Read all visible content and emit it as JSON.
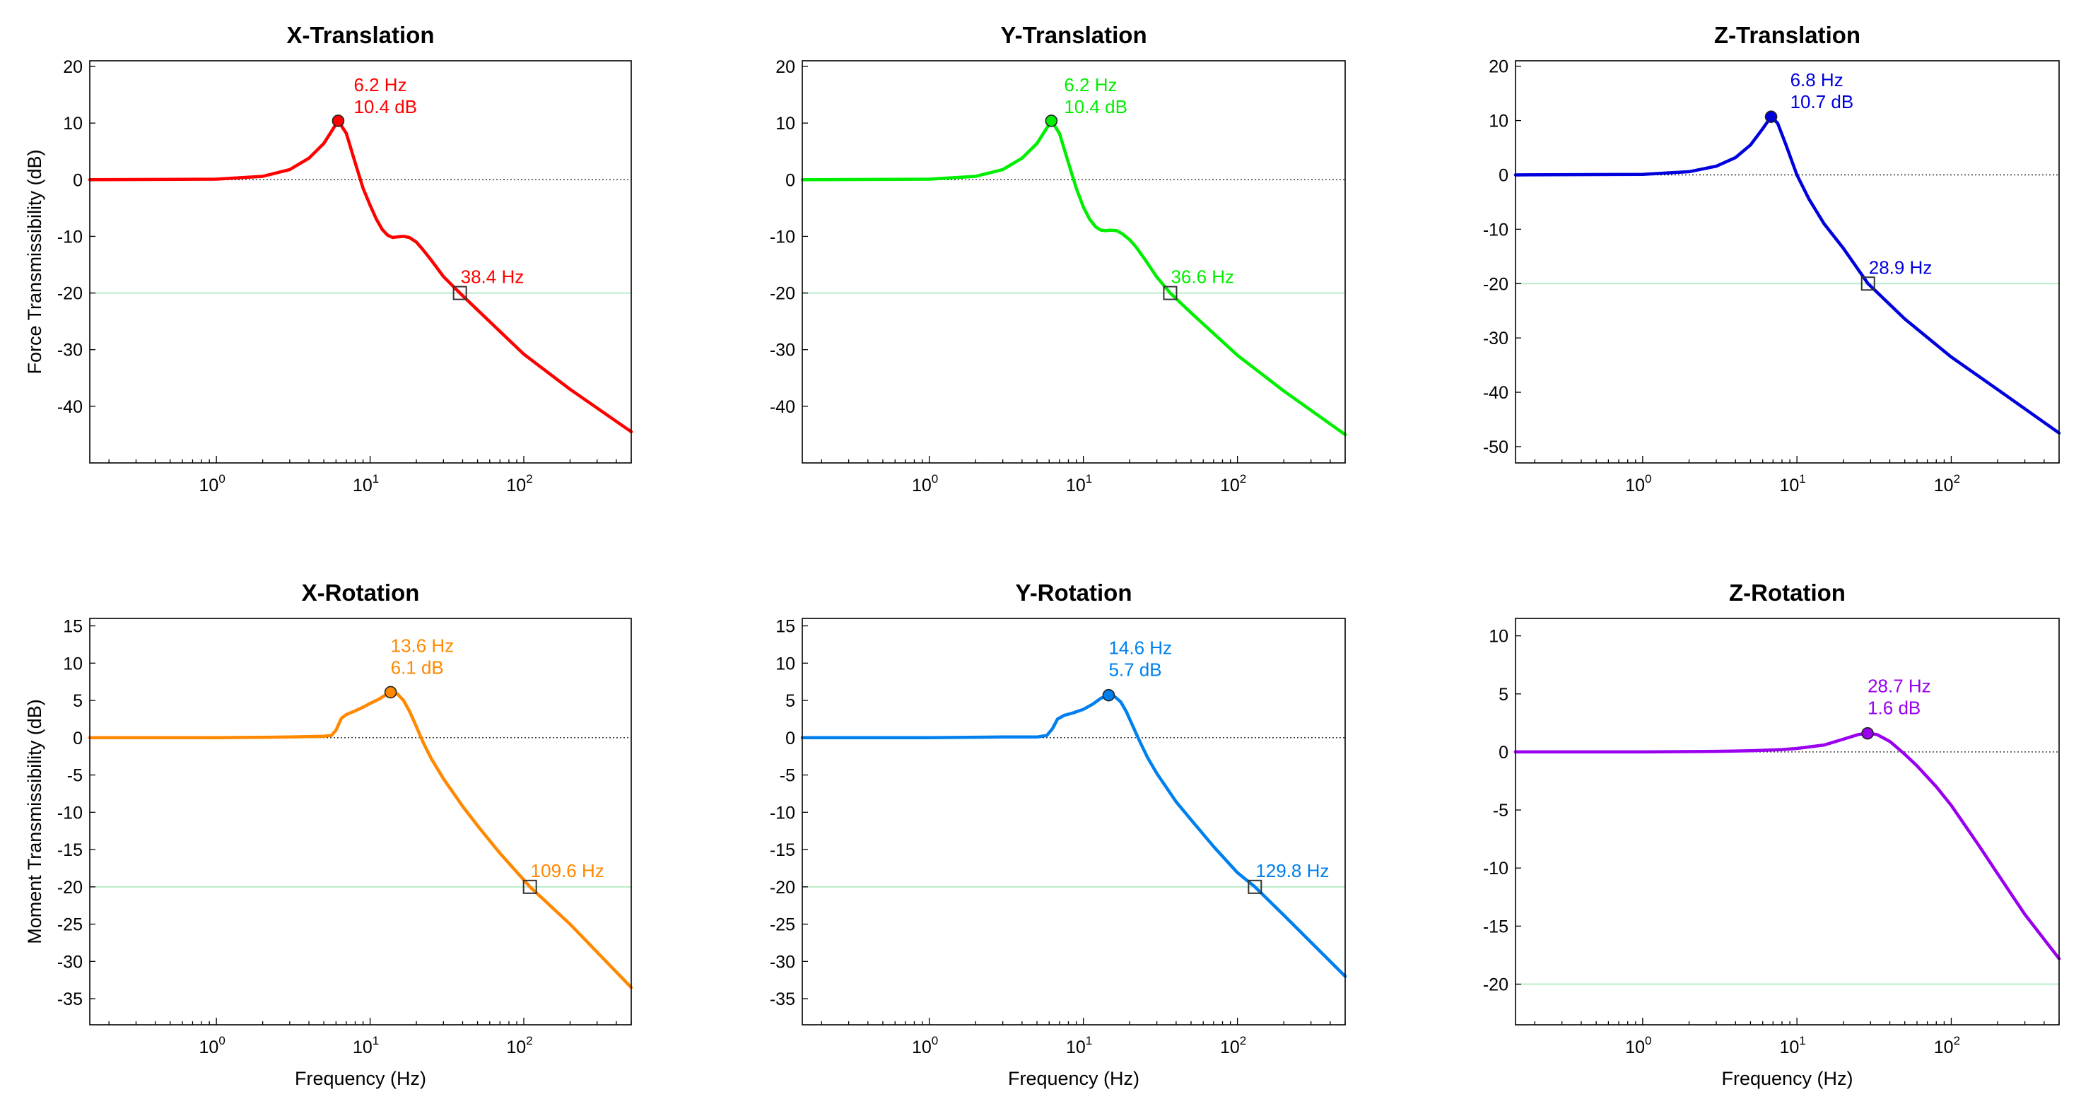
{
  "chart_data": [
    {
      "type": "line",
      "id": "xt",
      "title": "X-Translation",
      "color": "#ff0000",
      "ylabel": "Force Transmissibility  (dB)",
      "xlabel": "",
      "xscale": "log",
      "xlim": [
        0.15,
        500
      ],
      "ylim": [
        -50,
        21
      ],
      "yticks": [
        20,
        10,
        0,
        -10,
        -20,
        -30,
        -40
      ],
      "xticks": [
        {
          "base": "10",
          "exp": "0",
          "value": 1
        },
        {
          "base": "10",
          "exp": "1",
          "value": 10
        },
        {
          "base": "10",
          "exp": "2",
          "value": 100
        }
      ],
      "reference_line_db": -20,
      "points": [
        [
          0.15,
          0
        ],
        [
          1,
          0.1
        ],
        [
          2,
          0.6
        ],
        [
          3,
          1.8
        ],
        [
          4,
          3.8
        ],
        [
          5,
          6.4
        ],
        [
          6.2,
          10.4
        ],
        [
          7,
          8.2
        ],
        [
          8,
          3
        ],
        [
          9,
          -1.5
        ],
        [
          10,
          -4.5
        ],
        [
          11,
          -7
        ],
        [
          12,
          -8.8
        ],
        [
          13,
          -9.8
        ],
        [
          14,
          -10.2
        ],
        [
          15,
          -10.1
        ],
        [
          16.5,
          -10
        ],
        [
          18,
          -10.2
        ],
        [
          20,
          -11
        ],
        [
          22,
          -12.3
        ],
        [
          25,
          -14.2
        ],
        [
          30,
          -17.1
        ],
        [
          38.4,
          -20
        ],
        [
          50,
          -23
        ],
        [
          100,
          -30.8
        ],
        [
          200,
          -37
        ],
        [
          500,
          -44.5
        ]
      ],
      "peak": {
        "freq": 6.2,
        "db": 10.4,
        "freq_label": "6.2 Hz",
        "db_label": "10.4 dB"
      },
      "crossover": {
        "freq": 38.4,
        "db": -20,
        "label": "38.4 Hz"
      }
    },
    {
      "type": "line",
      "id": "yt",
      "title": "Y-Translation",
      "color": "#00ee00",
      "ylabel": "",
      "xlabel": "",
      "xscale": "log",
      "xlim": [
        0.15,
        500
      ],
      "ylim": [
        -50,
        21
      ],
      "yticks": [
        20,
        10,
        0,
        -10,
        -20,
        -30,
        -40
      ],
      "xticks": [
        {
          "base": "10",
          "exp": "0",
          "value": 1
        },
        {
          "base": "10",
          "exp": "1",
          "value": 10
        },
        {
          "base": "10",
          "exp": "2",
          "value": 100
        }
      ],
      "reference_line_db": -20,
      "points": [
        [
          0.15,
          0
        ],
        [
          1,
          0.1
        ],
        [
          2,
          0.6
        ],
        [
          3,
          1.8
        ],
        [
          4,
          3.8
        ],
        [
          5,
          6.4
        ],
        [
          6.2,
          10.4
        ],
        [
          7,
          8.2
        ],
        [
          8,
          3
        ],
        [
          9,
          -1.5
        ],
        [
          10,
          -4.8
        ],
        [
          11,
          -7
        ],
        [
          12,
          -8.3
        ],
        [
          13,
          -8.9
        ],
        [
          14,
          -9
        ],
        [
          15,
          -8.9
        ],
        [
          16.5,
          -9
        ],
        [
          18,
          -9.6
        ],
        [
          20,
          -10.6
        ],
        [
          22,
          -11.9
        ],
        [
          25,
          -14
        ],
        [
          30,
          -17.2
        ],
        [
          36.6,
          -20
        ],
        [
          50,
          -23.5
        ],
        [
          100,
          -31
        ],
        [
          200,
          -37.3
        ],
        [
          500,
          -45
        ]
      ],
      "peak": {
        "freq": 6.2,
        "db": 10.4,
        "freq_label": "6.2 Hz",
        "db_label": "10.4 dB"
      },
      "crossover": {
        "freq": 36.6,
        "db": -20,
        "label": "36.6 Hz"
      }
    },
    {
      "type": "line",
      "id": "zt",
      "title": "Z-Translation",
      "color": "#0000dd",
      "ylabel": "",
      "xlabel": "",
      "xscale": "log",
      "xlim": [
        0.15,
        500
      ],
      "ylim": [
        -53,
        21
      ],
      "yticks": [
        20,
        10,
        0,
        -10,
        -20,
        -30,
        -40,
        -50
      ],
      "xticks": [
        {
          "base": "10",
          "exp": "0",
          "value": 1
        },
        {
          "base": "10",
          "exp": "1",
          "value": 10
        },
        {
          "base": "10",
          "exp": "2",
          "value": 100
        }
      ],
      "reference_line_db": -20,
      "points": [
        [
          0.15,
          0
        ],
        [
          1,
          0.1
        ],
        [
          2,
          0.6
        ],
        [
          3,
          1.6
        ],
        [
          4,
          3.2
        ],
        [
          5,
          5.5
        ],
        [
          6,
          8.5
        ],
        [
          6.8,
          10.7
        ],
        [
          7.5,
          9.5
        ],
        [
          8.5,
          5.5
        ],
        [
          10,
          0
        ],
        [
          12,
          -4.5
        ],
        [
          15,
          -9
        ],
        [
          20,
          -13.5
        ],
        [
          28.9,
          -20
        ],
        [
          50,
          -26.5
        ],
        [
          100,
          -33.5
        ],
        [
          200,
          -39.5
        ],
        [
          500,
          -47.5
        ]
      ],
      "peak": {
        "freq": 6.8,
        "db": 10.7,
        "freq_label": "6.8 Hz",
        "db_label": "10.7 dB"
      },
      "crossover": {
        "freq": 28.9,
        "db": -20,
        "label": "28.9 Hz"
      }
    },
    {
      "type": "line",
      "id": "xr",
      "title": "X-Rotation",
      "color": "#ff8800",
      "ylabel": "Moment Transmissibility  (dB)",
      "xlabel": "Frequency (Hz)",
      "xscale": "log",
      "xlim": [
        0.15,
        500
      ],
      "ylim": [
        -38.5,
        16
      ],
      "yticks": [
        15,
        10,
        5,
        0,
        -5,
        -10,
        -15,
        -20,
        -25,
        -30,
        -35
      ],
      "xticks": [
        {
          "base": "10",
          "exp": "0",
          "value": 1
        },
        {
          "base": "10",
          "exp": "1",
          "value": 10
        },
        {
          "base": "10",
          "exp": "2",
          "value": 100
        }
      ],
      "reference_line_db": -20,
      "points": [
        [
          0.15,
          0
        ],
        [
          1,
          0
        ],
        [
          3,
          0.1
        ],
        [
          5,
          0.2
        ],
        [
          5.6,
          0.3
        ],
        [
          6,
          1
        ],
        [
          6.5,
          2.6
        ],
        [
          7,
          3.1
        ],
        [
          8,
          3.6
        ],
        [
          9,
          4.1
        ],
        [
          10,
          4.6
        ],
        [
          11.5,
          5.2
        ],
        [
          12.5,
          5.7
        ],
        [
          13.6,
          6.1
        ],
        [
          15,
          5.9
        ],
        [
          16.5,
          5
        ],
        [
          18,
          3.6
        ],
        [
          20,
          1.5
        ],
        [
          22,
          -0.5
        ],
        [
          25,
          -2.8
        ],
        [
          30,
          -5.5
        ],
        [
          40,
          -9.2
        ],
        [
          50,
          -11.8
        ],
        [
          70,
          -15.5
        ],
        [
          109.6,
          -20
        ],
        [
          200,
          -25
        ],
        [
          500,
          -33.5
        ]
      ],
      "peak": {
        "freq": 13.6,
        "db": 6.1,
        "freq_label": "13.6 Hz",
        "db_label": "6.1 dB"
      },
      "crossover": {
        "freq": 109.6,
        "db": -20,
        "label": "109.6 Hz"
      }
    },
    {
      "type": "line",
      "id": "yr",
      "title": "Y-Rotation",
      "color": "#0080ee",
      "ylabel": "",
      "xlabel": "Frequency (Hz)",
      "xscale": "log",
      "xlim": [
        0.15,
        500
      ],
      "ylim": [
        -38.5,
        16
      ],
      "yticks": [
        15,
        10,
        5,
        0,
        -5,
        -10,
        -15,
        -20,
        -25,
        -30,
        -35
      ],
      "xticks": [
        {
          "base": "10",
          "exp": "0",
          "value": 1
        },
        {
          "base": "10",
          "exp": "1",
          "value": 10
        },
        {
          "base": "10",
          "exp": "2",
          "value": 100
        }
      ],
      "reference_line_db": -20,
      "points": [
        [
          0.15,
          0
        ],
        [
          1,
          0
        ],
        [
          3,
          0.1
        ],
        [
          5,
          0.1
        ],
        [
          5.8,
          0.3
        ],
        [
          6.3,
          1.2
        ],
        [
          6.8,
          2.5
        ],
        [
          7.5,
          3
        ],
        [
          8.5,
          3.3
        ],
        [
          10,
          3.8
        ],
        [
          11.5,
          4.5
        ],
        [
          13,
          5.3
        ],
        [
          14.6,
          5.7
        ],
        [
          16,
          5.5
        ],
        [
          17.5,
          4.8
        ],
        [
          19,
          3.5
        ],
        [
          21,
          1.5
        ],
        [
          23,
          -0.3
        ],
        [
          26,
          -2.6
        ],
        [
          30,
          -4.8
        ],
        [
          40,
          -8.6
        ],
        [
          50,
          -11
        ],
        [
          70,
          -14.6
        ],
        [
          100,
          -18.1
        ],
        [
          129.8,
          -20
        ],
        [
          200,
          -23.8
        ],
        [
          500,
          -32
        ]
      ],
      "peak": {
        "freq": 14.6,
        "db": 5.7,
        "freq_label": "14.6 Hz",
        "db_label": "5.7 dB"
      },
      "crossover": {
        "freq": 129.8,
        "db": -20,
        "label": "129.8 Hz"
      }
    },
    {
      "type": "line",
      "id": "zr",
      "title": "Z-Rotation",
      "color": "#9900ee",
      "ylabel": "",
      "xlabel": "Frequency (Hz)",
      "xscale": "log",
      "xlim": [
        0.15,
        500
      ],
      "ylim": [
        -23.5,
        11.5
      ],
      "yticks": [
        10,
        5,
        0,
        -5,
        -10,
        -15,
        -20
      ],
      "xticks": [
        {
          "base": "10",
          "exp": "0",
          "value": 1
        },
        {
          "base": "10",
          "exp": "1",
          "value": 10
        },
        {
          "base": "10",
          "exp": "2",
          "value": 100
        }
      ],
      "reference_line_db": -20,
      "points": [
        [
          0.15,
          0
        ],
        [
          1,
          0
        ],
        [
          3,
          0.05
        ],
        [
          5,
          0.1
        ],
        [
          8,
          0.2
        ],
        [
          10,
          0.3
        ],
        [
          15,
          0.6
        ],
        [
          20,
          1.1
        ],
        [
          25,
          1.5
        ],
        [
          28.7,
          1.6
        ],
        [
          33,
          1.5
        ],
        [
          40,
          0.9
        ],
        [
          50,
          -0.2
        ],
        [
          60,
          -1.2
        ],
        [
          80,
          -3
        ],
        [
          100,
          -4.6
        ],
        [
          150,
          -8
        ],
        [
          200,
          -10.5
        ],
        [
          300,
          -14
        ],
        [
          500,
          -17.8
        ]
      ],
      "peak": {
        "freq": 28.7,
        "db": 1.6,
        "freq_label": "28.7 Hz",
        "db_label": "1.6 dB"
      },
      "crossover": null
    }
  ]
}
